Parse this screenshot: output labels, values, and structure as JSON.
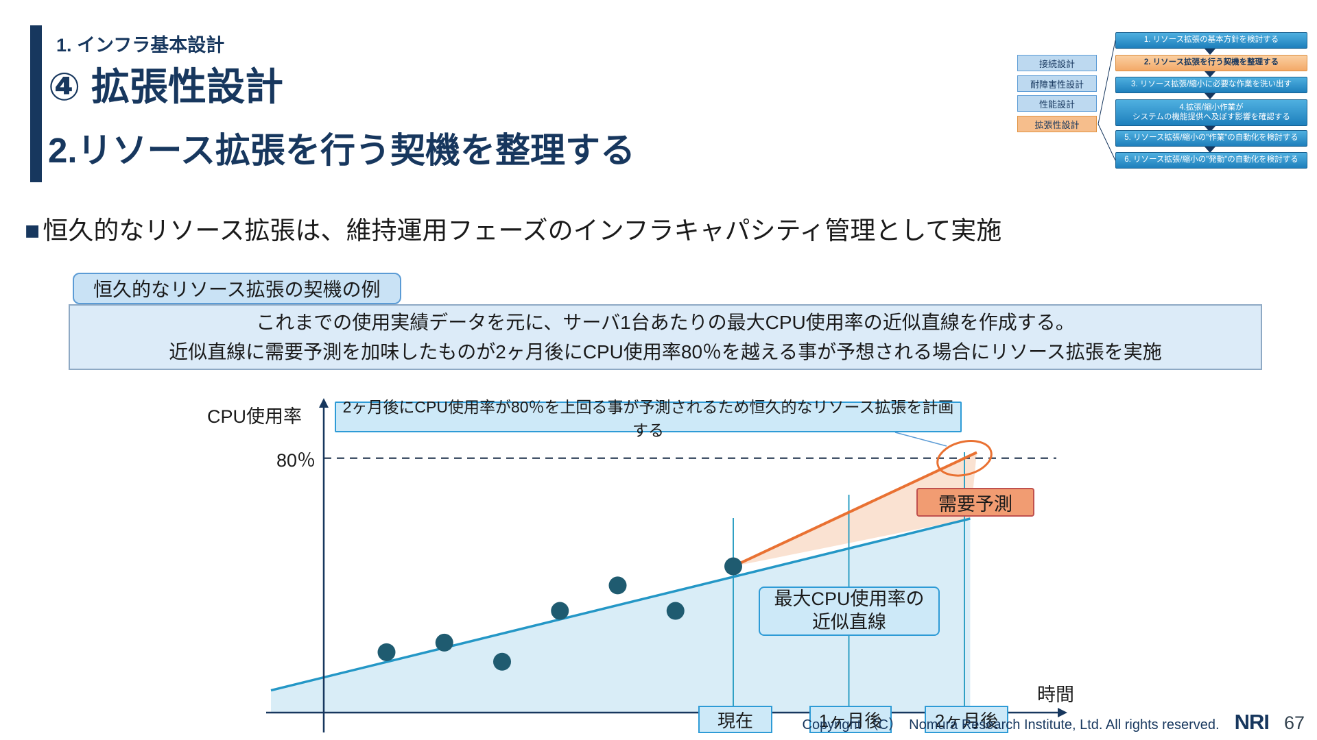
{
  "header": {
    "section": "1. インフラ基本設計",
    "title_line1": "④ 拡張性設計",
    "title_line2": "2.リソース拡張を行う契機を整理する"
  },
  "minimap": {
    "design_items": [
      {
        "label": "接続設計"
      },
      {
        "label": "耐障害性設計"
      },
      {
        "label": "性能設計"
      },
      {
        "label": "拡張性設計"
      }
    ],
    "steps": [
      {
        "label": "1. リソース拡張の基本方針を検討する"
      },
      {
        "label": "2. リソース拡張を行う契機を整理する"
      },
      {
        "label": "3. リソース拡張/縮小に必要な作業を洗い出す"
      },
      {
        "label_line1": "4.拡張/縮小作業が",
        "label_line2": "システムの機能提供へ及ぼす影響を確認する"
      },
      {
        "label": "5. リソース拡張/縮小の\"作業\"の自動化を検討する"
      },
      {
        "label": "6. リソース拡張/縮小の\"発動\"の自動化を検討する"
      }
    ]
  },
  "body": {
    "bullet_marker": "■",
    "bullet_text": "恒久的なリソース拡張は、維持運用フェーズのインフラキャパシティ管理として実施"
  },
  "example": {
    "tab": "恒久的なリソース拡張の契機の例",
    "line1": "これまでの使用実績データを元に、サーバ1台あたりの最大CPU使用率の近似直線を作成する。",
    "line2": "近似直線に需要予測を加味したものが2ヶ月後にCPU使用率80％を越える事が予想される場合にリソース拡張を実施"
  },
  "chart_data": {
    "type": "scatter",
    "ylabel": "CPU使用率",
    "xlabel": "時間",
    "threshold": {
      "value": 80,
      "label": "80％"
    },
    "x_ticks": [
      {
        "label": "現在",
        "t": 0
      },
      {
        "label": "1ヶ月後",
        "t": 1
      },
      {
        "label": "2ヶ月後",
        "t": 2
      }
    ],
    "scatter_points": [
      {
        "t": -3.0,
        "cpu": 19
      },
      {
        "t": -2.5,
        "cpu": 22
      },
      {
        "t": -2.0,
        "cpu": 16
      },
      {
        "t": -1.5,
        "cpu": 32
      },
      {
        "t": -1.0,
        "cpu": 40
      },
      {
        "t": -0.5,
        "cpu": 32
      },
      {
        "t": 0.0,
        "cpu": 46
      }
    ],
    "trend_line": {
      "from": {
        "t": -4.0,
        "cpu": 7
      },
      "to": {
        "t": 2.05,
        "cpu": 61
      }
    },
    "forecast_line": {
      "from": {
        "t": 0.0,
        "cpu": 46
      },
      "to": {
        "t": 2.0,
        "cpu": 80
      }
    },
    "annotation": "2ヶ月後にCPU使用率が80％を上回る事が予測されるため恒久的なリソース拡張を計画する",
    "trend_label_line1": "最大CPU使用率の",
    "trend_label_line2": "近似直線",
    "forecast_label": "需要予測",
    "colors": {
      "trend": "#2497C6",
      "forecast": "#E97132",
      "scatter": "#1F5B70",
      "threshold": "#44546A",
      "trend_area": "#D2EAF6",
      "forecast_area": "#F5C6A5",
      "tick_line": "#2FA0C4",
      "axis": "#17375E"
    }
  },
  "footer": {
    "copyright": "Copyright （C）　Nomura Research Institute, Ltd. All rights reserved.",
    "logo": "NRI",
    "page": "67"
  }
}
